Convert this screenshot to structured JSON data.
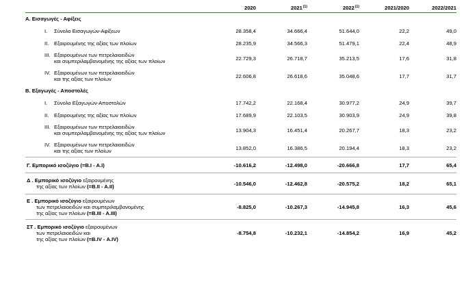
{
  "header": {
    "col_2020": "2020",
    "col_2021": "2021",
    "col_2021_note": "(1)",
    "col_2022": "2022",
    "col_2022_note": "(1)",
    "col_r1": "2021/2020",
    "col_r2": "2022/2021"
  },
  "section_a": {
    "title": "Α. Εισαγωγές - Αφίξεις",
    "rows": [
      {
        "roman": "I.",
        "line1": "Σύνολο Εισαγωγών-Αφίξεων",
        "line2": "",
        "v2020": "28.358,4",
        "v2021": "34.666,4",
        "v2022": "51.644,0",
        "r1": "22,2",
        "r2": "49,0"
      },
      {
        "roman": "II.",
        "line1": "Εξαιρουμένης  της αξίας των πλοίων",
        "line2": "",
        "v2020": "28.235,9",
        "v2021": "34.566,3",
        "v2022": "51.479,1",
        "r1": "22,4",
        "r2": "48,9"
      },
      {
        "roman": "III.",
        "line1": "Εξαιρουμένων των πετρελαιοειδών",
        "line2": "και συμπεριλαμβανομένης της αξίας των πλοίων",
        "v2020": "22.729,3",
        "v2021": "26.718,7",
        "v2022": "35.213,5",
        "r1": "17,6",
        "r2": "31,8"
      },
      {
        "roman": "IV.",
        "line1": "Εξαιρουμένων των πετρελαιοειδών",
        "line2": "και  της αξίας των πλοίων",
        "v2020": "22.606,8",
        "v2021": "26.618,6",
        "v2022": "35.048,6",
        "r1": "17,7",
        "r2": "31,7"
      }
    ]
  },
  "section_b": {
    "title": "Β. Εξαγωγές - Αποστολές",
    "rows": [
      {
        "roman": "I.",
        "line1": "Σύνολο Εξαγωγών-Αποστολών",
        "line2": "",
        "v2020": "17.742,2",
        "v2021": "22.168,4",
        "v2022": "30.977,2",
        "r1": "24,9",
        "r2": "39,7"
      },
      {
        "roman": "II.",
        "line1": "Εξαιρουμένης  της αξίας των πλοίων",
        "line2": "",
        "v2020": "17.689,9",
        "v2021": "22.103,5",
        "v2022": "30.903,9",
        "r1": "24,9",
        "r2": "39,8"
      },
      {
        "roman": "III.",
        "line1": "Εξαιρουμένων των πετρελαιοειδών",
        "line2": "και συμπεριλαμβανομένης  της αξίας των πλοίων",
        "v2020": "13.904,3",
        "v2021": "16.451,4",
        "v2022": "20.267,7",
        "r1": "18,3",
        "r2": "23,2"
      },
      {
        "roman": "IV.",
        "line1": "Εξαιρουμένων των πετρελαιοειδών",
        "line2": "και  της αξίας των πλοίων",
        "v2020": "13.852,0",
        "v2021": "16.386,5",
        "v2022": "20.194,4",
        "r1": "18,3",
        "r2": "23,2"
      }
    ]
  },
  "balances": [
    {
      "bold_a": "Γ. Εμπορικό ισοζύγιο (=Β.Ι - Α.Ι)",
      "normal_a": "",
      "line2_normal": "",
      "line2_bold": "",
      "line3_normal": "",
      "line3_bold": "",
      "v2020": "-10.616,2",
      "v2021": "-12.498,0",
      "v2022": "-20.666,8",
      "r1": "17,7",
      "r2": "65,4"
    },
    {
      "bold_a": "Δ . Εμπορικό ισοζύγιο",
      "normal_a": " εξαιρουμένης",
      "line2_normal": "της αξίας των πλοίων",
      "line2_bold": " (=Β.ΙΙ - Α.ΙΙ)",
      "line3_normal": "",
      "line3_bold": "",
      "v2020": "-10.546,0",
      "v2021": "-12.462,8",
      "v2022": "-20.575,2",
      "r1": "18,2",
      "r2": "65,1"
    },
    {
      "bold_a": "Ε . Εμπορικό ισοζύγιο",
      "normal_a": " εξαιρουμένων",
      "line2_normal": "των πετρελαιοειδών και συμπεριλαμβανομένης",
      "line2_bold": "",
      "line3_normal": "της αξίας των πλοίων",
      "line3_bold": " (=Β.ΙΙΙ - Α.ΙΙΙ)",
      "v2020": "-8.825,0",
      "v2021": "-10.267,3",
      "v2022": "-14.945,8",
      "r1": "16,3",
      "r2": "45,6"
    },
    {
      "bold_a": "ΣΤ . Εμπορικό ισοζύγιο",
      "normal_a": " εξαιρουμένων",
      "line2_normal": "των πετρελαιοειδών και",
      "line2_bold": "",
      "line3_normal": "της αξίας των πλοίων",
      "line3_bold": " (=Β.IV - Α.IV)",
      "v2020": "-8.754,8",
      "v2021": "-10.232,1",
      "v2022": "-14.854,2",
      "r1": "16,9",
      "r2": "45,2"
    }
  ]
}
